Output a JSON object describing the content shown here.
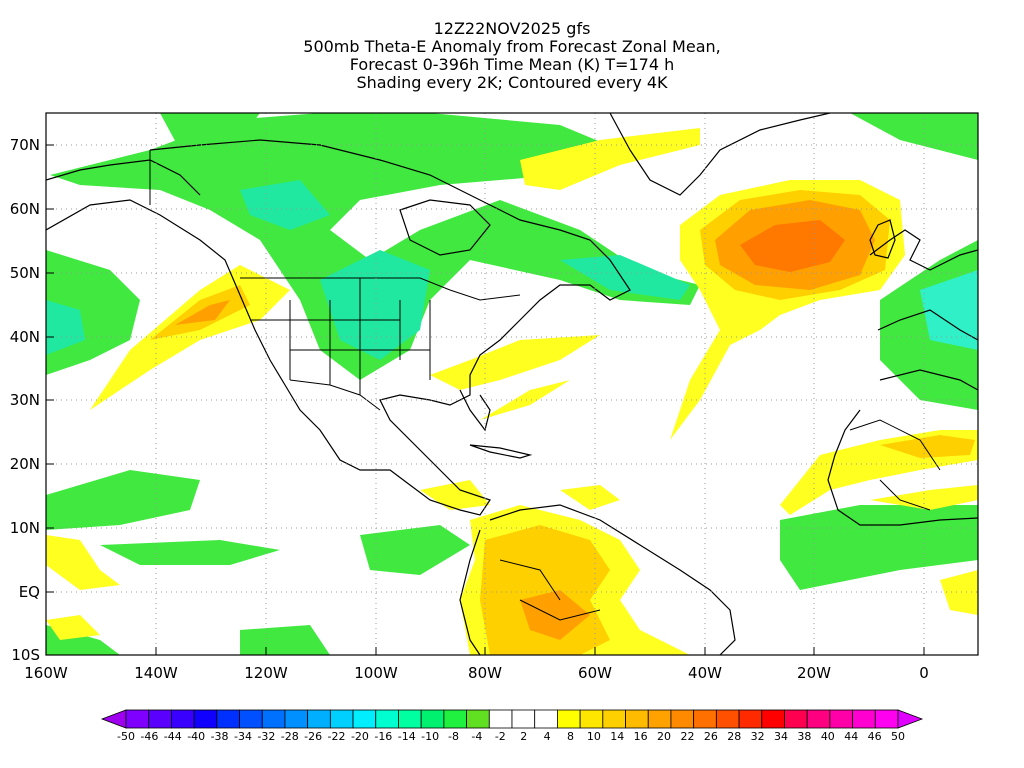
{
  "title": {
    "line1": "12Z22NOV2025 gfs",
    "line2": "500mb Theta-E Anomaly from Forecast Zonal Mean,",
    "line3": "Forecast 0-396h Time Mean (K) T=174 h",
    "line4": "Shading every 2K; Contoured every 4K"
  },
  "axes": {
    "lat_labels": [
      "70N",
      "60N",
      "50N",
      "40N",
      "30N",
      "20N",
      "10N",
      "EQ",
      "10S"
    ],
    "lon_labels": [
      "160W",
      "140W",
      "120W",
      "100W",
      "80W",
      "60W",
      "40W",
      "20W",
      "0"
    ]
  },
  "colorbar": {
    "labels": [
      "-50",
      "-46",
      "-44",
      "-40",
      "-38",
      "-34",
      "-32",
      "-28",
      "-26",
      "-22",
      "-20",
      "-16",
      "-14",
      "-10",
      "-8",
      "-4",
      "-2",
      "2",
      "4",
      "8",
      "10",
      "14",
      "16",
      "20",
      "22",
      "26",
      "28",
      "32",
      "34",
      "38",
      "40",
      "44",
      "46",
      "50"
    ],
    "colors": [
      "#a000f0",
      "#8000ff",
      "#5a00ff",
      "#3a00ff",
      "#1000ff",
      "#0030ff",
      "#0050ff",
      "#0070ff",
      "#0090ff",
      "#00b0ff",
      "#00d0ff",
      "#00eeff",
      "#00ffd0",
      "#00ffa0",
      "#00f070",
      "#20f040",
      "#60e020",
      "#ffffff",
      "#ffffff",
      "#ffffff",
      "#ffff00",
      "#ffe600",
      "#ffd000",
      "#ffbb00",
      "#ffa200",
      "#ff8a00",
      "#ff7000",
      "#ff5000",
      "#ff2a00",
      "#ff0000",
      "#ff0050",
      "#ff0080",
      "#ff00a8",
      "#ff00d0",
      "#ff00f0",
      "#e000ff"
    ]
  },
  "fills": {
    "green": "#40e840",
    "teal": "#20e8a0",
    "cyan": "#30f0c8",
    "yellow": "#ffff20",
    "gold": "#ffd000",
    "orange": "#ffa000",
    "darkorange": "#ff7800"
  }
}
